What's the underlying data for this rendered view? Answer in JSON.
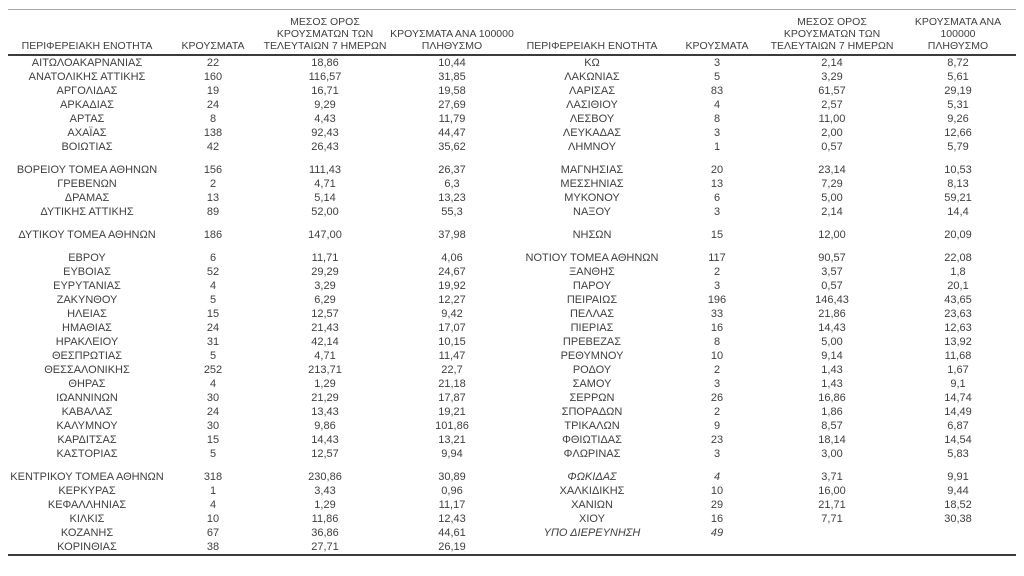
{
  "table": {
    "headers": {
      "region": "ΠΕΡΙΦΕΡΕΙΑΚΗ ΕΝΟΤΗΤΑ",
      "cases": "ΚΡΟΥΣΜΑΤΑ",
      "avg7": "ΜΕΣΟΣ ΟΡΟΣ\nΚΡΟΥΣΜΑΤΩΝ ΤΩΝ\nΤΕΛΕΥΤΑΙΩΝ 7 ΗΜΕΡΩΝ",
      "per100k": "ΚΡΟΥΣΜΑΤΑ ΑΝΑ 100000\nΠΛΗΘΥΣΜΟ"
    },
    "left_rows": [
      {
        "region": "ΑΙΤΩΛΟΑΚΑΡΝΑΝΙΑΣ",
        "cases": "22",
        "avg7": "18,86",
        "per100k": "10,44"
      },
      {
        "region": "ΑΝΑΤΟΛΙΚΗΣ ΑΤΤΙΚΗΣ",
        "cases": "160",
        "avg7": "116,57",
        "per100k": "31,85"
      },
      {
        "region": "ΑΡΓΟΛΙΔΑΣ",
        "cases": "19",
        "avg7": "16,71",
        "per100k": "19,58"
      },
      {
        "region": "ΑΡΚΑΔΙΑΣ",
        "cases": "24",
        "avg7": "9,29",
        "per100k": "27,69"
      },
      {
        "region": "ΑΡΤΑΣ",
        "cases": "8",
        "avg7": "4,43",
        "per100k": "11,79"
      },
      {
        "region": "ΑΧΑΪΑΣ",
        "cases": "138",
        "avg7": "92,43",
        "per100k": "44,47"
      },
      {
        "region": "ΒΟΙΩΤΙΑΣ",
        "cases": "42",
        "avg7": "26,43",
        "per100k": "35,62"
      },
      {
        "spacer": true
      },
      {
        "region": "ΒΟΡΕΙΟΥ ΤΟΜΕΑ ΑΘΗΝΩΝ",
        "cases": "156",
        "avg7": "111,43",
        "per100k": "26,37"
      },
      {
        "region": "ΓΡΕΒΕΝΩΝ",
        "cases": "2",
        "avg7": "4,71",
        "per100k": "6,3"
      },
      {
        "region": "ΔΡΑΜΑΣ",
        "cases": "13",
        "avg7": "5,14",
        "per100k": "13,23"
      },
      {
        "region": "ΔΥΤΙΚΗΣ ΑΤΤΙΚΗΣ",
        "cases": "89",
        "avg7": "52,00",
        "per100k": "55,3"
      },
      {
        "spacer": true
      },
      {
        "region": "ΔΥΤΙΚΟΥ ΤΟΜΕΑ ΑΘΗΝΩΝ",
        "cases": "186",
        "avg7": "147,00",
        "per100k": "37,98"
      },
      {
        "spacer": true
      },
      {
        "region": "ΕΒΡΟΥ",
        "cases": "6",
        "avg7": "11,71",
        "per100k": "4,06"
      },
      {
        "region": "ΕΥΒΟΙΑΣ",
        "cases": "52",
        "avg7": "29,29",
        "per100k": "24,67"
      },
      {
        "region": "ΕΥΡΥΤΑΝΙΑΣ",
        "cases": "4",
        "avg7": "3,29",
        "per100k": "19,92"
      },
      {
        "region": "ΖΑΚΥΝΘΟΥ",
        "cases": "5",
        "avg7": "6,29",
        "per100k": "12,27"
      },
      {
        "region": "ΗΛΕΙΑΣ",
        "cases": "15",
        "avg7": "12,57",
        "per100k": "9,42"
      },
      {
        "region": "ΗΜΑΘΙΑΣ",
        "cases": "24",
        "avg7": "21,43",
        "per100k": "17,07"
      },
      {
        "region": "ΗΡΑΚΛΕΙΟΥ",
        "cases": "31",
        "avg7": "42,14",
        "per100k": "10,15"
      },
      {
        "region": "ΘΕΣΠΡΩΤΙΑΣ",
        "cases": "5",
        "avg7": "4,71",
        "per100k": "11,47"
      },
      {
        "region": "ΘΕΣΣΑΛΟΝΙΚΗΣ",
        "cases": "252",
        "avg7": "213,71",
        "per100k": "22,7"
      },
      {
        "region": "ΘΗΡΑΣ",
        "cases": "4",
        "avg7": "1,29",
        "per100k": "21,18"
      },
      {
        "region": "ΙΩΑΝΝΙΝΩΝ",
        "cases": "30",
        "avg7": "21,29",
        "per100k": "17,87"
      },
      {
        "region": "ΚΑΒΑΛΑΣ",
        "cases": "24",
        "avg7": "13,43",
        "per100k": "19,21"
      },
      {
        "region": "ΚΑΛΥΜΝΟΥ",
        "cases": "30",
        "avg7": "9,86",
        "per100k": "101,86"
      },
      {
        "region": "ΚΑΡΔΙΤΣΑΣ",
        "cases": "15",
        "avg7": "14,43",
        "per100k": "13,21"
      },
      {
        "region": "ΚΑΣΤΟΡΙΑΣ",
        "cases": "5",
        "avg7": "12,57",
        "per100k": "9,94"
      },
      {
        "spacer": true
      },
      {
        "region": "ΚΕΝΤΡΙΚΟΥ ΤΟΜΕΑ ΑΘΗΝΩΝ",
        "cases": "318",
        "avg7": "230,86",
        "per100k": "30,89"
      },
      {
        "region": "ΚΕΡΚΥΡΑΣ",
        "cases": "1",
        "avg7": "3,43",
        "per100k": "0,96"
      },
      {
        "region": "ΚΕΦΑΛΛΗΝΙΑΣ",
        "cases": "4",
        "avg7": "1,29",
        "per100k": "11,17"
      },
      {
        "region": "ΚΙΛΚΙΣ",
        "cases": "10",
        "avg7": "11,86",
        "per100k": "12,43"
      },
      {
        "region": "ΚΟΖΑΝΗΣ",
        "cases": "67",
        "avg7": "36,86",
        "per100k": "44,61"
      },
      {
        "region": "ΚΟΡΙΝΘΙΑΣ",
        "cases": "38",
        "avg7": "27,71",
        "per100k": "26,19"
      }
    ],
    "right_rows": [
      {
        "region": "ΚΩ",
        "cases": "3",
        "avg7": "2,14",
        "per100k": "8,72"
      },
      {
        "region": "ΛΑΚΩΝΙΑΣ",
        "cases": "5",
        "avg7": "3,29",
        "per100k": "5,61"
      },
      {
        "region": "ΛΑΡΙΣΑΣ",
        "cases": "83",
        "avg7": "61,57",
        "per100k": "29,19"
      },
      {
        "region": "ΛΑΣΙΘΙΟΥ",
        "cases": "4",
        "avg7": "2,57",
        "per100k": "5,31"
      },
      {
        "region": "ΛΕΣΒΟΥ",
        "cases": "8",
        "avg7": "11,00",
        "per100k": "9,26"
      },
      {
        "region": "ΛΕΥΚΑΔΑΣ",
        "cases": "3",
        "avg7": "2,00",
        "per100k": "12,66"
      },
      {
        "region": "ΛΗΜΝΟΥ",
        "cases": "1",
        "avg7": "0,57",
        "per100k": "5,79"
      },
      {
        "spacer": true
      },
      {
        "region": "ΜΑΓΝΗΣΙΑΣ",
        "cases": "20",
        "avg7": "23,14",
        "per100k": "10,53"
      },
      {
        "region": "ΜΕΣΣΗΝΙΑΣ",
        "cases": "13",
        "avg7": "7,29",
        "per100k": "8,13"
      },
      {
        "region": "ΜΥΚΟΝΟΥ",
        "cases": "6",
        "avg7": "5,00",
        "per100k": "59,21"
      },
      {
        "region": "ΝΑΞΟΥ",
        "cases": "3",
        "avg7": "2,14",
        "per100k": "14,4"
      },
      {
        "spacer": true
      },
      {
        "region": "ΝΗΣΩΝ",
        "cases": "15",
        "avg7": "12,00",
        "per100k": "20,09"
      },
      {
        "spacer": true
      },
      {
        "region": "ΝΟΤΙΟΥ ΤΟΜΕΑ ΑΘΗΝΩΝ",
        "cases": "117",
        "avg7": "90,57",
        "per100k": "22,08"
      },
      {
        "region": "ΞΑΝΘΗΣ",
        "cases": "2",
        "avg7": "3,57",
        "per100k": "1,8"
      },
      {
        "region": "ΠΑΡΟΥ",
        "cases": "3",
        "avg7": "0,57",
        "per100k": "20,1"
      },
      {
        "region": "ΠΕΙΡΑΙΩΣ",
        "cases": "196",
        "avg7": "146,43",
        "per100k": "43,65"
      },
      {
        "region": "ΠΕΛΛΑΣ",
        "cases": "33",
        "avg7": "21,86",
        "per100k": "23,63"
      },
      {
        "region": "ΠΙΕΡΙΑΣ",
        "cases": "16",
        "avg7": "14,43",
        "per100k": "12,63"
      },
      {
        "region": "ΠΡΕΒΕΖΑΣ",
        "cases": "8",
        "avg7": "5,00",
        "per100k": "13,92"
      },
      {
        "region": "ΡΕΘΥΜΝΟΥ",
        "cases": "10",
        "avg7": "9,14",
        "per100k": "11,68"
      },
      {
        "region": "ΡΟΔΟΥ",
        "cases": "2",
        "avg7": "1,43",
        "per100k": "1,67"
      },
      {
        "region": "ΣΑΜΟΥ",
        "cases": "3",
        "avg7": "1,43",
        "per100k": "9,1"
      },
      {
        "region": "ΣΕΡΡΩΝ",
        "cases": "26",
        "avg7": "16,86",
        "per100k": "14,74"
      },
      {
        "region": "ΣΠΟΡΑΔΩΝ",
        "cases": "2",
        "avg7": "1,86",
        "per100k": "14,49"
      },
      {
        "region": "ΤΡΙΚΑΛΩΝ",
        "cases": "9",
        "avg7": "8,57",
        "per100k": "6,87"
      },
      {
        "region": "ΦΘΙΩΤΙΔΑΣ",
        "cases": "23",
        "avg7": "18,14",
        "per100k": "14,54"
      },
      {
        "region": "ΦΛΩΡΙΝΑΣ",
        "cases": "3",
        "avg7": "3,00",
        "per100k": "5,83"
      },
      {
        "spacer": true
      },
      {
        "region": "ΦΩΚΙΔΑΣ",
        "cases": "4",
        "avg7": "3,71",
        "per100k": "9,91",
        "italic": true
      },
      {
        "region": "ΧΑΛΚΙΔΙΚΗΣ",
        "cases": "10",
        "avg7": "16,00",
        "per100k": "9,44"
      },
      {
        "region": "ΧΑΝΙΩΝ",
        "cases": "29",
        "avg7": "21,71",
        "per100k": "18,52"
      },
      {
        "region": "ΧΙΟΥ",
        "cases": "16",
        "avg7": "7,71",
        "per100k": "30,38"
      },
      {
        "region": "ΥΠΟ ΔΙΕΡΕΥΝΗΣΗ",
        "cases": "49",
        "avg7": "",
        "per100k": "",
        "italic": true
      },
      {
        "region": "",
        "cases": "",
        "avg7": "",
        "per100k": ""
      }
    ]
  },
  "colors": {
    "text": "#3f3f3f",
    "top_rule": "#a6a6a6",
    "header_rule": "#3b3b3b",
    "bottom_rule": "#3b3b3b"
  }
}
